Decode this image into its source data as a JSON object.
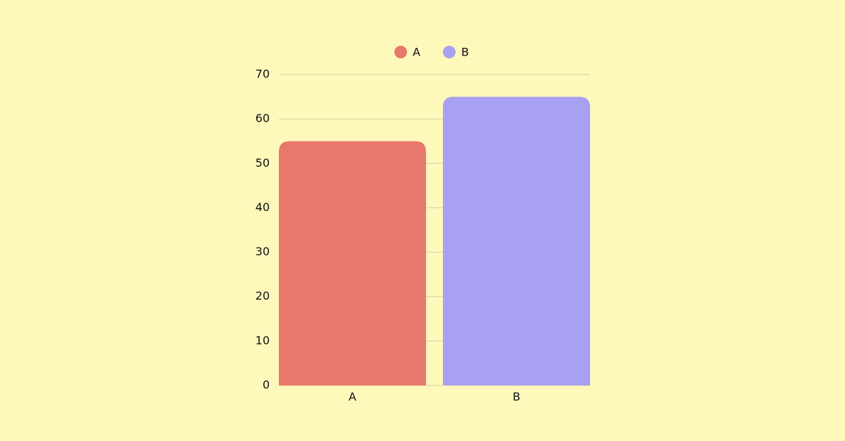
{
  "chart_data": {
    "type": "bar",
    "categories": [
      "A",
      "B"
    ],
    "values": [
      55,
      65
    ],
    "colors": [
      "#e8786d",
      "#a8a0f2"
    ],
    "ylim": [
      0,
      70
    ],
    "yticks": [
      0,
      10,
      20,
      30,
      40,
      50,
      60,
      70
    ],
    "grid": true,
    "legend": "top"
  }
}
